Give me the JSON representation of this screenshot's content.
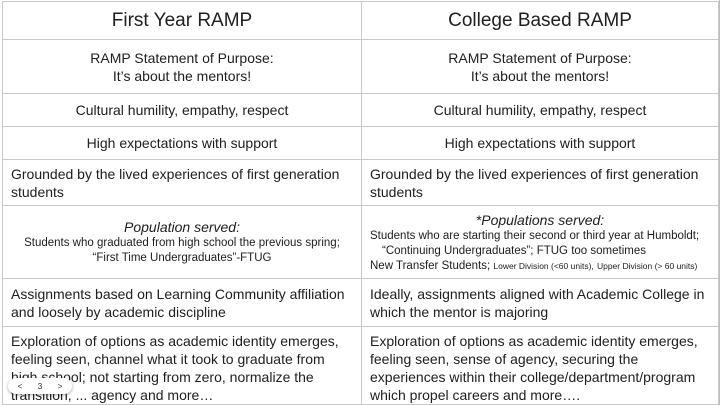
{
  "headers": {
    "col1": "First Year RAMP",
    "col2": "College Based RAMP"
  },
  "purpose": {
    "col1_line1": "RAMP Statement of Purpose:",
    "col1_line2": "It’s about the mentors!",
    "col2_line1": "RAMP Statement of Purpose:",
    "col2_line2": "It’s about the mentors!"
  },
  "humility": {
    "col1": "Cultural humility, empathy, respect",
    "col2": "Cultural humility, empathy, respect"
  },
  "expectations": {
    "col1": "High expectations with support",
    "col2": "High expectations with support"
  },
  "grounded": {
    "col1": "Grounded by the lived experiences of first generation students",
    "col2": "Grounded by the lived experiences of first generation students"
  },
  "population": {
    "col1_title": "Population served:",
    "col1_line1": "Students who graduated from high school the previous spring;",
    "col1_line2": "“First Time Undergraduates”-FTUG",
    "col2_title": "*Populations served:",
    "col2_line1": "Students who are starting their second or third year at Humboldt;",
    "col2_line2": "“Continuing Undergraduates”; FTUG too sometimes",
    "col2_line3": "New Transfer Students;",
    "col2_lower": "Lower Division (<60 units),",
    "col2_upper": "Upper Division (> 60 units)"
  },
  "assignments": {
    "col1": "Assignments based on Learning Community affiliation and loosely by academic discipline",
    "col2": "Ideally, assignments aligned with Academic College in which the mentor is majoring"
  },
  "exploration": {
    "col1": "Exploration of options as academic identity emerges, feeling seen, channel what it took to graduate from high school; not starting from zero, normalize the transition, ... agency and more…",
    "col2": "Exploration of options as academic identity emerges, feeling seen, sense of agency, securing the experiences within their college/department/program which propel careers and more…."
  },
  "page_control": {
    "prev": "<",
    "page": "3",
    "next": ">"
  }
}
